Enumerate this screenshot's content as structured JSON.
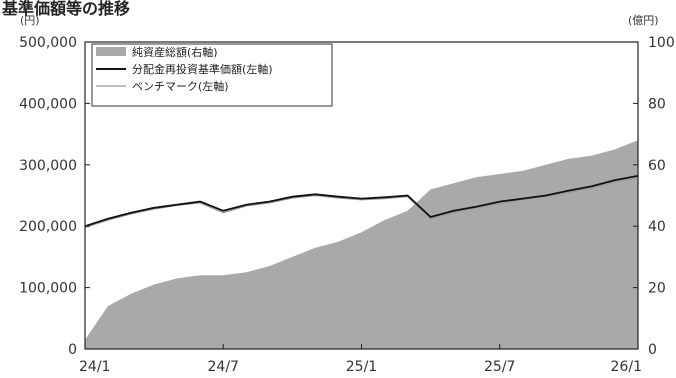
{
  "chart_data": {
    "type": "line",
    "title": "基準価額等の推移",
    "y_left_unit": "(円)",
    "y_right_unit": "(億円)",
    "y_left_lim": [
      0,
      500000
    ],
    "y_right_lim": [
      0,
      100
    ],
    "y_left_ticks": [
      "0",
      "100,000",
      "200,000",
      "300,000",
      "400,000",
      "500,000"
    ],
    "y_right_ticks": [
      "0",
      "20",
      "40",
      "60",
      "80",
      "100"
    ],
    "x_ticks": [
      "24/1",
      "24/7",
      "25/1",
      "25/7",
      "26/1"
    ],
    "legend": [
      "純資産総額(右軸)",
      "分配金再投資基準価額(左軸)",
      "ベンチマーク(左軸)"
    ],
    "colors": {
      "area": "#a9a9a9",
      "nav": "#111111",
      "benchmark": "#999999"
    },
    "series": [
      {
        "name": "純資産総額(右軸)",
        "axis": "right",
        "x": [
          "2024-01",
          "2024-02",
          "2024-03",
          "2024-04",
          "2024-05",
          "2024-06",
          "2024-07",
          "2024-08",
          "2024-09",
          "2024-10",
          "2024-11",
          "2024-12",
          "2025-01",
          "2025-02",
          "2025-03",
          "2025-04",
          "2025-05",
          "2025-06",
          "2025-07",
          "2025-08",
          "2025-09",
          "2025-10",
          "2025-11",
          "2025-12",
          "2026-01"
        ],
        "values": [
          3,
          14,
          18,
          21,
          23,
          24,
          24,
          25,
          27,
          30,
          33,
          35,
          38,
          42,
          45,
          52,
          54,
          56,
          57,
          58,
          60,
          62,
          63,
          65,
          68
        ]
      },
      {
        "name": "分配金再投資基準価額(左軸)",
        "axis": "left",
        "x": [
          "2024-01",
          "2024-02",
          "2024-03",
          "2024-04",
          "2024-05",
          "2024-06",
          "2024-07",
          "2024-08",
          "2024-09",
          "2024-10",
          "2024-11",
          "2024-12",
          "2025-01",
          "2025-02",
          "2025-03",
          "2025-04",
          "2025-05",
          "2025-06",
          "2025-07",
          "2025-08",
          "2025-09",
          "2025-10",
          "2025-11",
          "2025-12",
          "2026-01"
        ],
        "values": [
          200000,
          212000,
          222000,
          230000,
          235000,
          240000,
          225000,
          235000,
          240000,
          248000,
          252000,
          248000,
          245000,
          247000,
          250000,
          215000,
          225000,
          232000,
          240000,
          245000,
          250000,
          258000,
          265000,
          275000,
          282000
        ]
      },
      {
        "name": "ベンチマーク(左軸)",
        "axis": "left",
        "x": [
          "2024-01",
          "2024-02",
          "2024-03",
          "2024-04",
          "2024-05",
          "2024-06",
          "2024-07",
          "2024-08",
          "2024-09",
          "2024-10",
          "2024-11",
          "2024-12",
          "2025-01",
          "2025-02",
          "2025-03",
          "2025-04",
          "2025-05",
          "2025-06",
          "2025-07",
          "2025-08",
          "2025-09",
          "2025-10",
          "2025-11",
          "2025-12",
          "2026-01"
        ],
        "values": [
          198000,
          210000,
          220000,
          228000,
          234000,
          238000,
          222000,
          233000,
          238000,
          246000,
          250000,
          246000,
          243000,
          245000,
          248000,
          212000,
          222000,
          230000,
          237000,
          243000,
          248000,
          255000,
          262000,
          272000,
          279000
        ]
      }
    ]
  }
}
